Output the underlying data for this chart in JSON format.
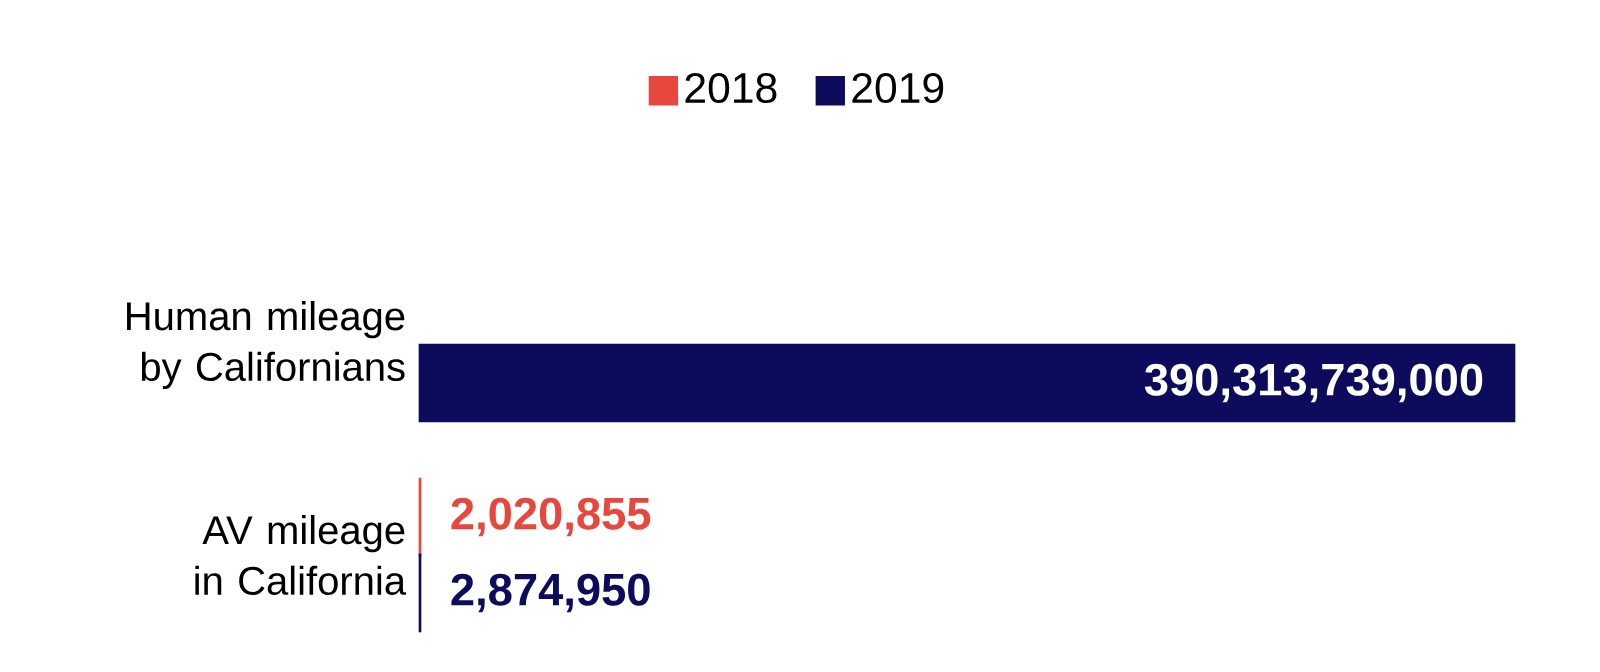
{
  "chart_data": {
    "type": "bar",
    "orientation": "horizontal",
    "categories": [
      "Human mileage by Californians",
      "AV mileage in California"
    ],
    "series": [
      {
        "name": "2018",
        "color": "#e8473e",
        "values": [
          null,
          2020855
        ],
        "value_labels": [
          null,
          "2,020,855"
        ]
      },
      {
        "name": "2019",
        "color": "#0d0c5c",
        "values": [
          390313739000,
          2874950
        ],
        "value_labels": [
          "390,313,739,000",
          "2,874,950"
        ]
      }
    ],
    "legend": "top"
  }
}
